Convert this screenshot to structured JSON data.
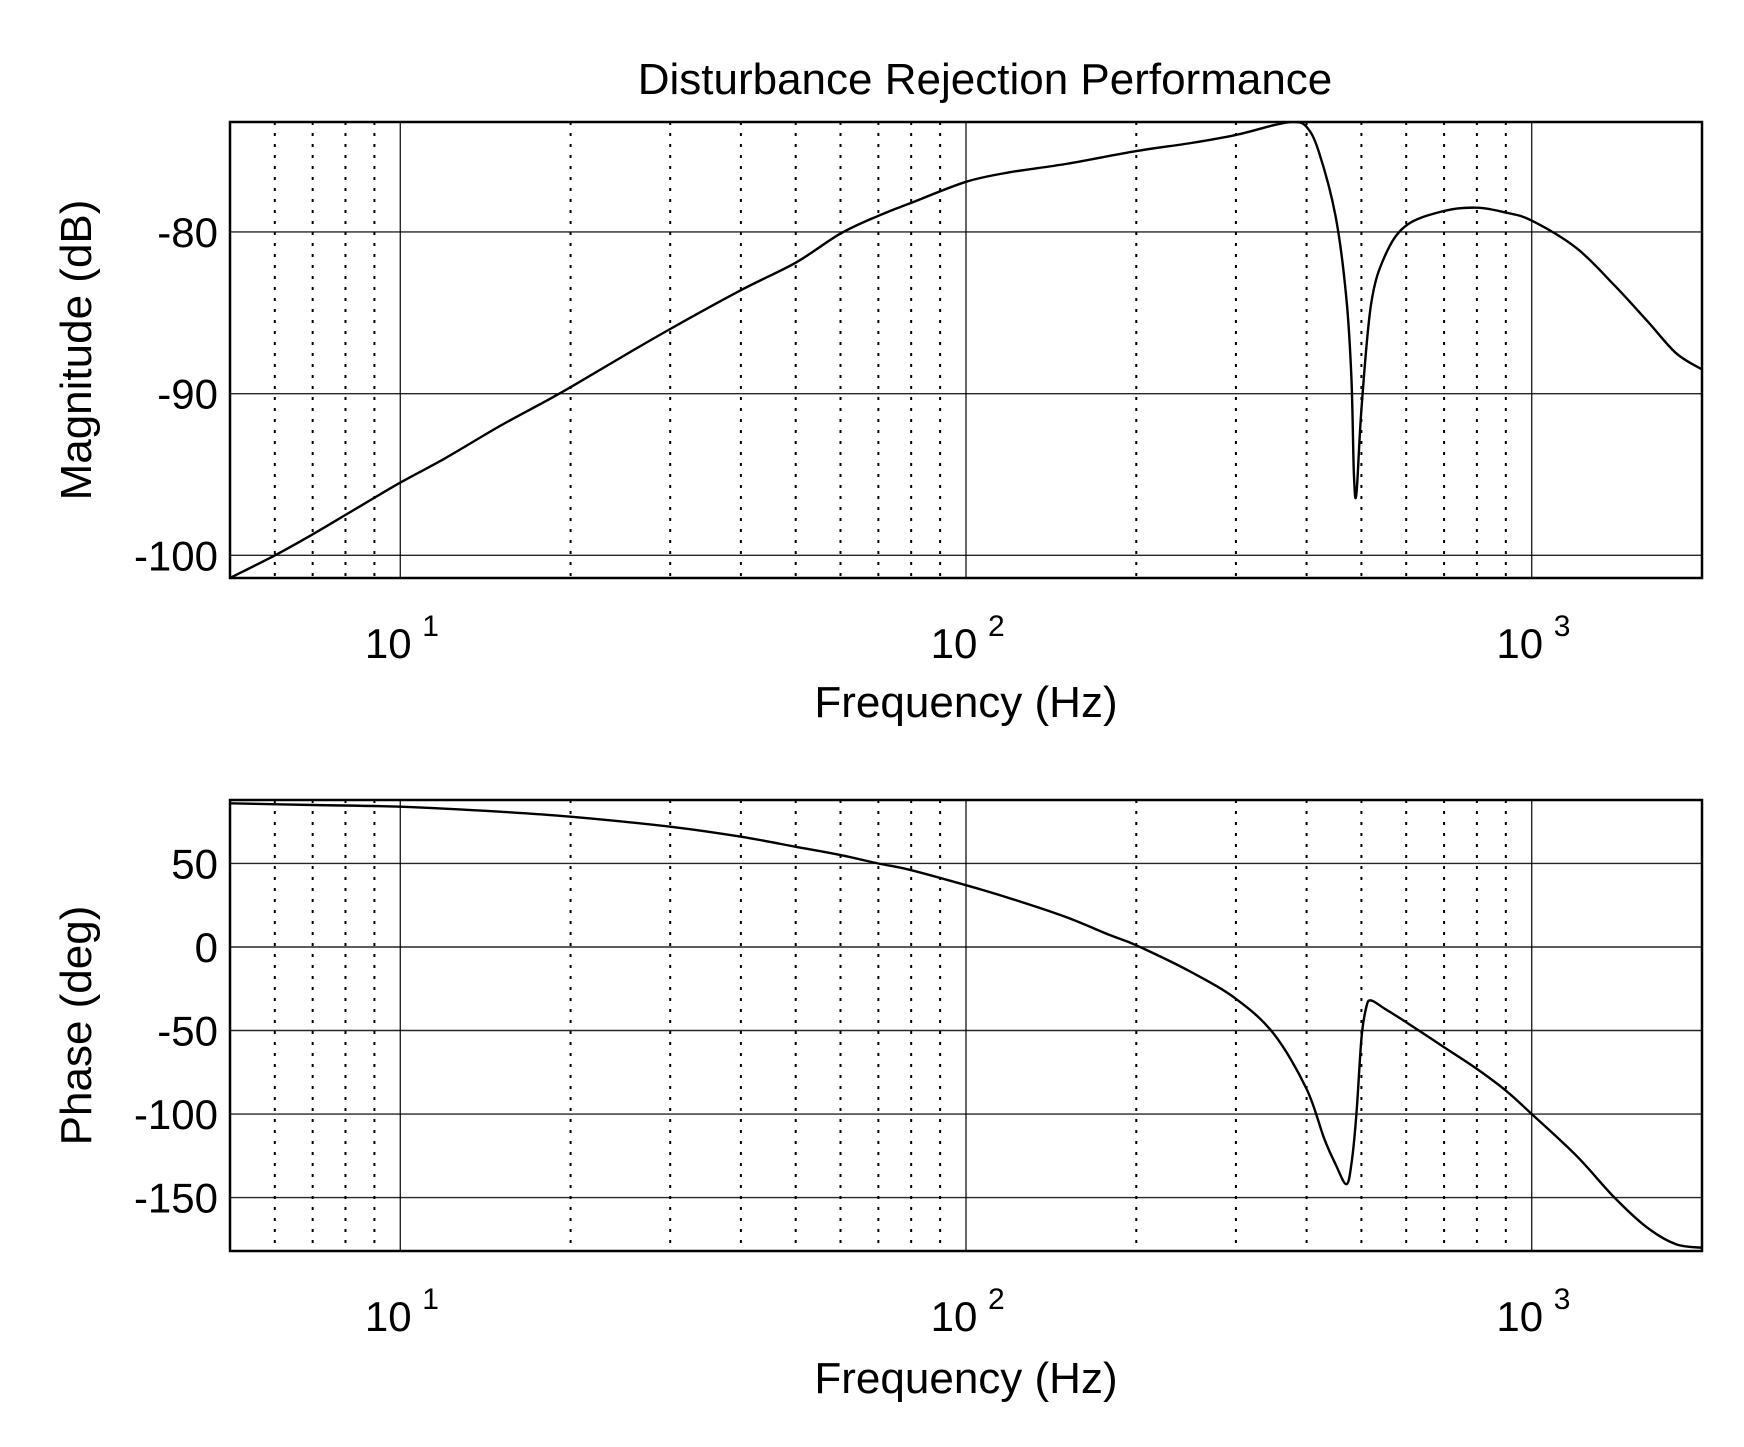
{
  "figure_title": "Disturbance Rejection Performance",
  "chart_data": [
    {
      "type": "line",
      "title": "Disturbance Rejection Performance",
      "xlabel": "Frequency (Hz)",
      "ylabel": "Magnitude (dB)",
      "xscale": "log",
      "xlim": [
        5,
        2000
      ],
      "ylim": [
        -101.4,
        -73.2
      ],
      "xticks": [
        10,
        100,
        1000
      ],
      "xtick_labels": [
        {
          "base": "10",
          "exp": "1"
        },
        {
          "base": "10",
          "exp": "2"
        },
        {
          "base": "10",
          "exp": "3"
        }
      ],
      "yticks": [
        -100,
        -90,
        -80
      ],
      "ytick_labels": [
        "-100",
        "-90",
        "-80"
      ],
      "grid": true,
      "x": [
        5,
        6,
        7,
        8,
        10,
        12,
        15,
        18,
        20,
        25,
        30,
        40,
        50,
        60,
        70,
        80,
        100,
        120,
        150,
        200,
        250,
        300,
        350,
        380,
        400,
        420,
        450,
        470,
        480,
        485,
        490,
        500,
        520,
        550,
        600,
        700,
        800,
        900,
        1000,
        1200,
        1400,
        1600,
        1800,
        2000
      ],
      "y": [
        -101.4,
        -100.0,
        -98.7,
        -97.5,
        -95.5,
        -94.0,
        -92.0,
        -90.5,
        -89.6,
        -87.6,
        -86.0,
        -83.6,
        -81.9,
        -80.1,
        -79.0,
        -78.2,
        -76.9,
        -76.3,
        -75.8,
        -75.0,
        -74.5,
        -74.0,
        -73.4,
        -73.2,
        -73.5,
        -75.0,
        -79.0,
        -84.0,
        -89.0,
        -95.0,
        -96.2,
        -91.0,
        -84.5,
        -81.5,
        -79.6,
        -78.7,
        -78.5,
        -78.8,
        -79.3,
        -81.0,
        -83.3,
        -85.5,
        -87.5,
        -88.5
      ]
    },
    {
      "type": "line",
      "title": "",
      "xlabel": "Frequency (Hz)",
      "ylabel": "Phase (deg)",
      "xscale": "log",
      "xlim": [
        5,
        2000
      ],
      "ylim": [
        -182,
        88
      ],
      "xticks": [
        10,
        100,
        1000
      ],
      "xtick_labels": [
        {
          "base": "10",
          "exp": "1"
        },
        {
          "base": "10",
          "exp": "2"
        },
        {
          "base": "10",
          "exp": "3"
        }
      ],
      "yticks": [
        -150,
        -100,
        -50,
        0,
        50
      ],
      "ytick_labels": [
        "-150",
        "-100",
        "-50",
        "0",
        "50"
      ],
      "grid": true,
      "x": [
        5,
        7,
        10,
        15,
        20,
        30,
        40,
        50,
        60,
        70,
        80,
        100,
        120,
        150,
        180,
        200,
        250,
        300,
        350,
        400,
        430,
        450,
        470,
        480,
        490,
        500,
        510,
        520,
        550,
        600,
        700,
        800,
        900,
        1000,
        1200,
        1400,
        1600,
        1800,
        2000
      ],
      "y": [
        86,
        85,
        84,
        81,
        78,
        72,
        66,
        60,
        55,
        50,
        46,
        37,
        29,
        18,
        7,
        1,
        -15,
        -31,
        -52,
        -85,
        -115,
        -130,
        -142,
        -130,
        -100,
        -55,
        -36,
        -32,
        -37,
        -45,
        -60,
        -73,
        -86,
        -100,
        -125,
        -150,
        -168,
        -178,
        -180
      ]
    }
  ]
}
